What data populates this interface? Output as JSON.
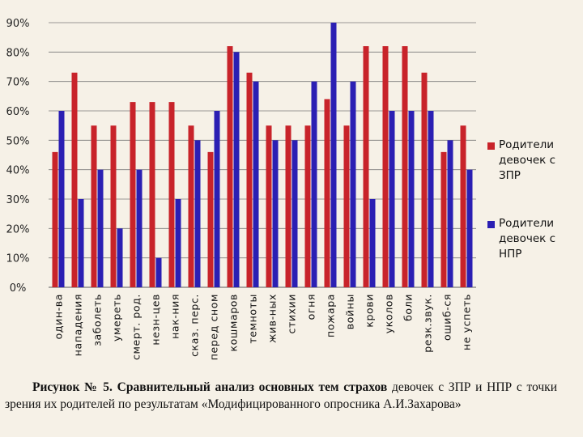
{
  "colors": {
    "series1": "#c8232a",
    "series2": "#2b1fb3",
    "background": "#f6f1e7",
    "grid": "#7a7a7a"
  },
  "legend": {
    "items": [
      {
        "label": "Родители девочек с ЗПР"
      },
      {
        "label": "Родители девочек с НПР"
      }
    ]
  },
  "caption": {
    "bold": "Рисунок № 5. Сравнительный анализ основных тем страхов",
    "rest": " девочек с ЗПР и НПР с точки зрения их родителей по результатам «Модифицированного опросника А.И.Захарова»"
  },
  "chart_data": {
    "type": "bar",
    "categories": [
      "один-ва",
      "нападения",
      "заболеть",
      "умереть",
      "смерт. род.",
      "незн-цев",
      "нак-ния",
      "сказ. перс.",
      "перед сном",
      "кошмаров",
      "темноты",
      "жив-ных",
      "стихии",
      "огня",
      "пожара",
      "войны",
      "крови",
      "уколов",
      "боли",
      "резк.звук.",
      "ошиб-ся",
      "не успеть"
    ],
    "series": [
      {
        "name": "Родители девочек с ЗПР",
        "values": [
          46,
          73,
          55,
          55,
          63,
          63,
          63,
          55,
          46,
          82,
          73,
          55,
          55,
          55,
          64,
          55,
          82,
          82,
          82,
          73,
          46,
          55
        ]
      },
      {
        "name": "Родители девочек с НПР",
        "values": [
          60,
          30,
          40,
          20,
          40,
          10,
          30,
          50,
          60,
          80,
          70,
          50,
          50,
          70,
          90,
          70,
          30,
          60,
          60,
          60,
          50,
          40
        ]
      }
    ],
    "yticks": [
      "0%",
      "10%",
      "20%",
      "30%",
      "40%",
      "50%",
      "60%",
      "70%",
      "80%",
      "90%"
    ],
    "ylim": [
      0,
      90
    ],
    "grid": true,
    "legend_position": "right"
  }
}
